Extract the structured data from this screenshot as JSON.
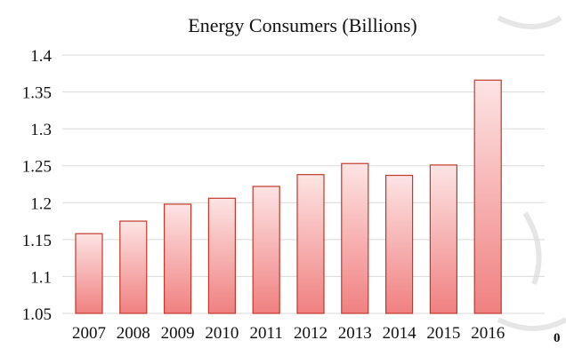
{
  "chart_data": {
    "type": "bar",
    "title": "Energy Consumers (Billions)",
    "xlabel": "",
    "ylabel": "",
    "categories": [
      "2007",
      "2008",
      "2009",
      "2010",
      "2011",
      "2012",
      "2013",
      "2014",
      "2015",
      "2016"
    ],
    "values": [
      1.158,
      1.175,
      1.198,
      1.206,
      1.222,
      1.238,
      1.253,
      1.237,
      1.251,
      1.366
    ],
    "ylim": [
      1.05,
      1.4
    ],
    "yticks": [
      "1.05",
      "1.1",
      "1.15",
      "1.2",
      "1.25",
      "1.3",
      "1.35",
      "1.4"
    ],
    "grid": true,
    "legend": "none",
    "colors": {
      "bar_top": "#fde4e4",
      "bar_bottom": "#f08080",
      "bar_edge": "#c0392b",
      "grid": "#d9d9d9"
    }
  },
  "corner_text": "0"
}
